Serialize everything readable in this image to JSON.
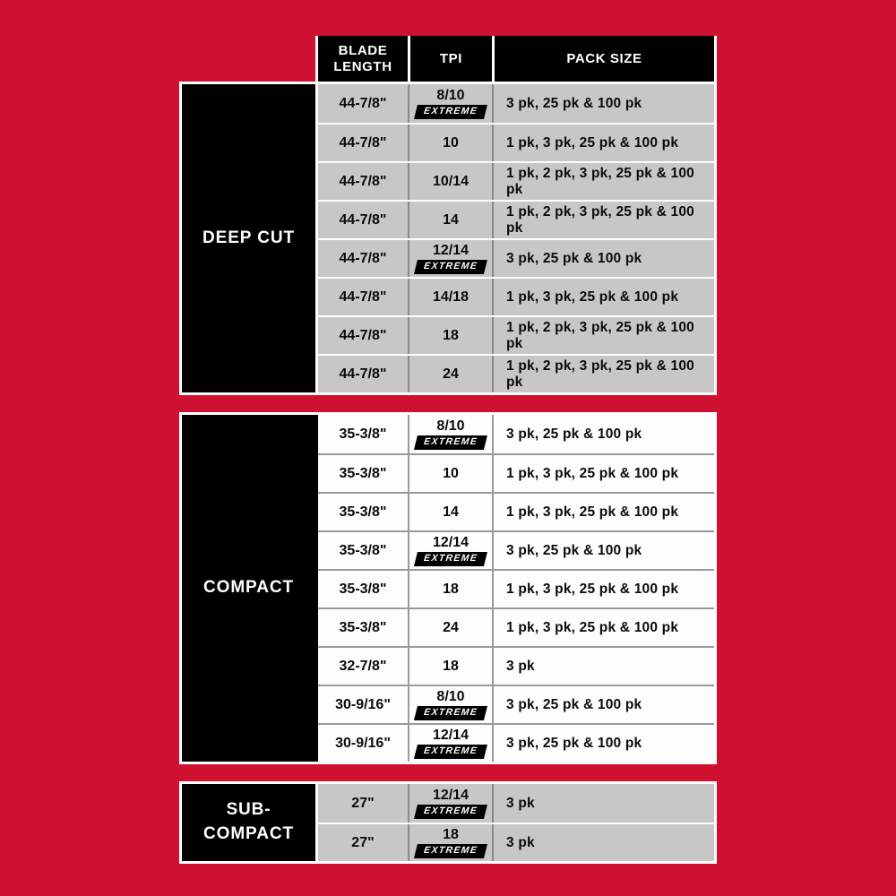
{
  "theme": {
    "background_red": "#CE1130",
    "gray_cell": "#C7C7C7",
    "white_cell": "#FDFDFD",
    "black": "#000000",
    "divider_dark": "#8A8A8A",
    "divider_light": "#FFFFFF"
  },
  "labels": {
    "extreme": "EXTREME"
  },
  "header": {
    "columns": [
      "BLADE LENGTH",
      "TPI",
      "PACK SIZE"
    ]
  },
  "sections": [
    {
      "label": "DEEP CUT",
      "row_style": "gray",
      "rows": [
        {
          "length": "44-7/8\"",
          "tpi": "8/10",
          "extreme": true,
          "pack": "3 pk, 25 pk & 100 pk"
        },
        {
          "length": "44-7/8\"",
          "tpi": "10",
          "extreme": false,
          "pack": "1 pk, 3 pk, 25 pk & 100 pk"
        },
        {
          "length": "44-7/8\"",
          "tpi": "10/14",
          "extreme": false,
          "pack": "1 pk, 2 pk, 3 pk, 25 pk & 100 pk"
        },
        {
          "length": "44-7/8\"",
          "tpi": "14",
          "extreme": false,
          "pack": "1 pk, 2 pk, 3 pk, 25 pk & 100 pk"
        },
        {
          "length": "44-7/8\"",
          "tpi": "12/14",
          "extreme": true,
          "pack": "3 pk, 25 pk & 100 pk"
        },
        {
          "length": "44-7/8\"",
          "tpi": "14/18",
          "extreme": false,
          "pack": "1 pk, 3 pk, 25 pk & 100 pk"
        },
        {
          "length": "44-7/8\"",
          "tpi": "18",
          "extreme": false,
          "pack": "1 pk, 2 pk, 3 pk, 25 pk & 100 pk"
        },
        {
          "length": "44-7/8\"",
          "tpi": "24",
          "extreme": false,
          "pack": "1 pk, 2 pk, 3 pk, 25 pk & 100 pk"
        }
      ]
    },
    {
      "label": "COMPACT",
      "row_style": "white",
      "rows": [
        {
          "length": "35-3/8\"",
          "tpi": "8/10",
          "extreme": true,
          "pack": "3 pk, 25 pk & 100 pk"
        },
        {
          "length": "35-3/8\"",
          "tpi": "10",
          "extreme": false,
          "pack": "1 pk, 3 pk, 25 pk & 100 pk"
        },
        {
          "length": "35-3/8\"",
          "tpi": "14",
          "extreme": false,
          "pack": "1 pk, 3 pk, 25 pk & 100 pk"
        },
        {
          "length": "35-3/8\"",
          "tpi": "12/14",
          "extreme": true,
          "pack": "3 pk, 25 pk & 100 pk"
        },
        {
          "length": "35-3/8\"",
          "tpi": "18",
          "extreme": false,
          "pack": "1 pk, 3 pk, 25 pk & 100 pk"
        },
        {
          "length": "35-3/8\"",
          "tpi": "24",
          "extreme": false,
          "pack": "1 pk, 3 pk, 25 pk & 100 pk"
        },
        {
          "length": "32-7/8\"",
          "tpi": "18",
          "extreme": false,
          "pack": "3 pk"
        },
        {
          "length": "30-9/16\"",
          "tpi": "8/10",
          "extreme": true,
          "pack": "3 pk, 25 pk & 100 pk"
        },
        {
          "length": "30-9/16\"",
          "tpi": "12/14",
          "extreme": true,
          "pack": "3 pk, 25 pk & 100 pk"
        }
      ]
    },
    {
      "label": "SUB-\nCOMPACT",
      "row_style": "gray",
      "rows": [
        {
          "length": "27\"",
          "tpi": "12/14",
          "extreme": true,
          "pack": "3 pk"
        },
        {
          "length": "27\"",
          "tpi": "18",
          "extreme": true,
          "pack": "3 pk"
        }
      ]
    }
  ]
}
